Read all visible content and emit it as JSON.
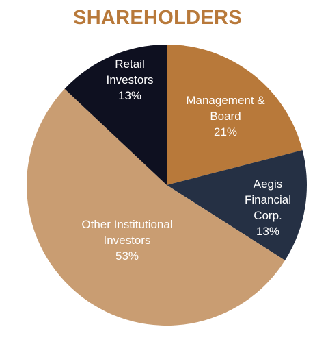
{
  "chart_data": {
    "type": "pie",
    "title": "SHAREHOLDERS",
    "slices": [
      {
        "name": "Management & Board",
        "label_lines": [
          "Management &",
          "Board"
        ],
        "value": 21,
        "value_label": "21%",
        "color": "#b8793a"
      },
      {
        "name": "Aegis Financial Corp.",
        "label_lines": [
          "Aegis",
          "Financial",
          "Corp."
        ],
        "value": 13,
        "value_label": "13%",
        "color": "#253044"
      },
      {
        "name": "Other Institutional Investors",
        "label_lines": [
          "Other Institutional",
          "Investors"
        ],
        "value": 53,
        "value_label": "53%",
        "color": "#c99d72"
      },
      {
        "name": "Retail Investors",
        "label_lines": [
          "Retail",
          "Investors"
        ],
        "value": 13,
        "value_label": "13%",
        "color": "#0e1020"
      }
    ],
    "start_angle": "12 o'clock",
    "direction": "clockwise",
    "legend": "none",
    "labels": "inside slices"
  }
}
